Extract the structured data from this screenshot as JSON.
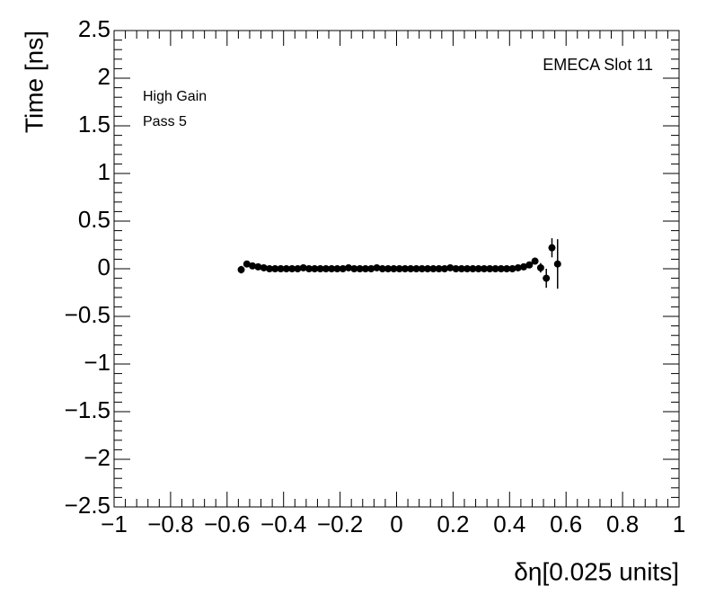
{
  "chart_data": {
    "type": "errorbar-scatter",
    "annotations": [
      "EMECA Slot 11",
      "High Gain",
      "Pass 5"
    ],
    "x_label": "δη[0.025 units]",
    "y_label": "Time [ns]",
    "xlim": [
      -1,
      1
    ],
    "ylim": [
      -2.5,
      2.5
    ],
    "xticks": [
      {
        "value": -1,
        "label": "−1"
      },
      {
        "value": -0.8,
        "label": "−0.8"
      },
      {
        "value": -0.6,
        "label": "−0.6"
      },
      {
        "value": -0.4,
        "label": "−0.4"
      },
      {
        "value": -0.2,
        "label": "−0.2"
      },
      0,
      0.2,
      0.4,
      0.6,
      0.8,
      1
    ],
    "yticks": [
      {
        "value": -2.5,
        "label": "−2.5"
      },
      {
        "value": -2,
        "label": "−2"
      },
      {
        "value": -1.5,
        "label": "−1.5"
      },
      {
        "value": -1,
        "label": "−1"
      },
      {
        "value": -0.5,
        "label": "−0.5"
      },
      0,
      0.5,
      1,
      1.5,
      2,
      2.5
    ],
    "color": "#000000",
    "x": [
      -0.55,
      -0.53,
      -0.51,
      -0.49,
      -0.47,
      -0.45,
      -0.43,
      -0.41,
      -0.39,
      -0.37,
      -0.35,
      -0.33,
      -0.31,
      -0.29,
      -0.27,
      -0.25,
      -0.23,
      -0.21,
      -0.19,
      -0.17,
      -0.15,
      -0.13,
      -0.11,
      -0.09,
      -0.07,
      -0.05,
      -0.03,
      -0.01,
      0.01,
      0.03,
      0.05,
      0.07,
      0.09,
      0.11,
      0.13,
      0.15,
      0.17,
      0.19,
      0.21,
      0.23,
      0.25,
      0.27,
      0.29,
      0.31,
      0.33,
      0.35,
      0.37,
      0.39,
      0.41,
      0.43,
      0.45,
      0.47,
      0.49,
      0.51,
      0.53,
      0.55,
      0.57
    ],
    "values": [
      -0.01,
      0.05,
      0.03,
      0.02,
      0.01,
      0,
      0,
      0,
      0,
      0,
      0,
      0.01,
      0,
      0,
      0,
      0,
      0,
      0,
      0,
      0.01,
      0,
      0,
      0,
      0,
      0.01,
      0,
      0,
      0,
      0,
      0,
      0,
      0,
      0,
      0,
      0,
      0,
      0,
      0.01,
      0,
      0,
      0,
      0,
      0,
      0,
      0,
      0,
      0,
      0,
      0,
      0.01,
      0.02,
      0.04,
      0.08,
      0.01,
      -0.1,
      0.22,
      0.05
    ],
    "errors": [
      0.04,
      0.01,
      0.01,
      0.01,
      0.01,
      0.01,
      0.01,
      0.01,
      0.01,
      0.01,
      0.01,
      0.01,
      0.01,
      0.01,
      0.01,
      0.01,
      0.01,
      0.01,
      0.01,
      0.01,
      0.01,
      0.01,
      0.01,
      0.01,
      0.01,
      0.01,
      0.01,
      0.01,
      0.01,
      0.01,
      0.01,
      0.01,
      0.01,
      0.01,
      0.01,
      0.01,
      0.01,
      0.01,
      0.01,
      0.01,
      0.01,
      0.01,
      0.01,
      0.01,
      0.01,
      0.01,
      0.01,
      0.01,
      0.01,
      0.01,
      0.01,
      0.01,
      0.02,
      0.05,
      0.1,
      0.1,
      0.26
    ]
  }
}
